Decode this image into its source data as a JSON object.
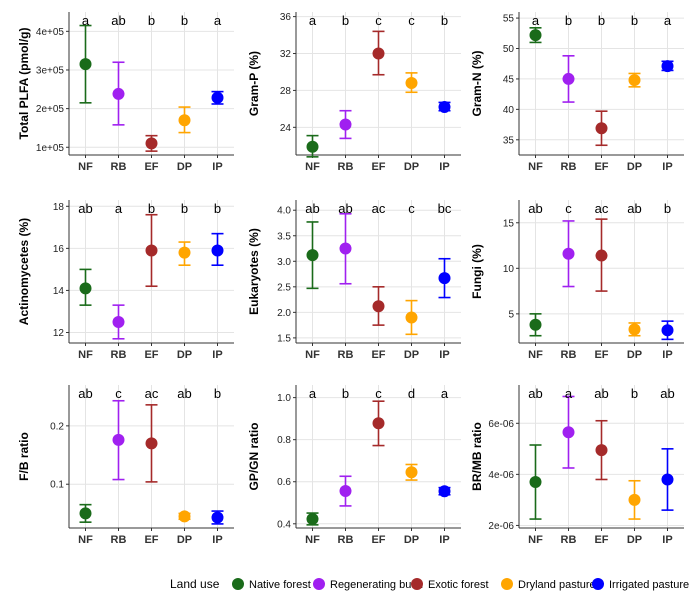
{
  "categories": [
    "NF",
    "RB",
    "EF",
    "DP",
    "IP"
  ],
  "colors": [
    "#1a6b1a",
    "#a020f0",
    "#a52a2a",
    "#ffa500",
    "#0000ff"
  ],
  "legend": {
    "title": "Land use",
    "entries": [
      "Native forest",
      "Regenerating bush",
      "Exotic forest",
      "Dryland pasture",
      "Irrigated pasture"
    ]
  },
  "chart_data": [
    {
      "type": "scatter",
      "ylabel": "Total PLFA (pmol/g)",
      "ylim": [
        80000,
        450000
      ],
      "ticks": [
        100000,
        200000,
        300000,
        400000
      ],
      "tick_labels": [
        "1e+05",
        "2e+05",
        "3e+05",
        "4e+05"
      ],
      "letters": [
        "a",
        "ab",
        "b",
        "b",
        "a"
      ],
      "values": [
        315000,
        238000,
        110000,
        170000,
        228000
      ],
      "lower": [
        215000,
        158000,
        90000,
        138000,
        212000
      ],
      "upper": [
        415000,
        320000,
        130000,
        204000,
        244000
      ]
    },
    {
      "type": "scatter",
      "ylabel": "Gram-P (%)",
      "ylim": [
        21,
        36.5
      ],
      "ticks": [
        24,
        28,
        32,
        36
      ],
      "tick_labels": [
        "24",
        "28",
        "32",
        "36"
      ],
      "letters": [
        "a",
        "b",
        "c",
        "c",
        "b"
      ],
      "values": [
        21.9,
        24.3,
        32.0,
        28.8,
        26.2
      ],
      "lower": [
        20.8,
        22.8,
        29.7,
        27.8,
        25.8
      ],
      "upper": [
        23.1,
        25.8,
        34.4,
        29.9,
        26.7
      ]
    },
    {
      "type": "scatter",
      "ylabel": "Gram-N (%)",
      "ylim": [
        32.5,
        56
      ],
      "ticks": [
        35,
        40,
        45,
        50,
        55
      ],
      "tick_labels": [
        "35",
        "40",
        "45",
        "50",
        "55"
      ],
      "letters": [
        "a",
        "b",
        "b",
        "b",
        "a"
      ],
      "values": [
        52.2,
        45.0,
        36.9,
        44.8,
        47.1
      ],
      "lower": [
        51.0,
        41.2,
        34.1,
        43.7,
        46.4
      ],
      "upper": [
        53.4,
        48.8,
        39.7,
        45.9,
        47.9
      ]
    },
    {
      "type": "scatter",
      "ylabel": "Actinomycetes (%)",
      "ylim": [
        11.5,
        18.3
      ],
      "ticks": [
        12,
        14,
        16,
        18
      ],
      "tick_labels": [
        "12",
        "14",
        "16",
        "18"
      ],
      "letters": [
        "ab",
        "a",
        "b",
        "b",
        "b"
      ],
      "values": [
        14.1,
        12.5,
        15.9,
        15.8,
        15.9
      ],
      "lower": [
        13.3,
        11.7,
        14.2,
        15.2,
        15.2
      ],
      "upper": [
        15.0,
        13.3,
        17.6,
        16.3,
        16.7
      ]
    },
    {
      "type": "scatter",
      "ylabel": "Eukaryotes (%)",
      "ylim": [
        1.4,
        4.2
      ],
      "ticks": [
        1.5,
        2.0,
        2.5,
        3.0,
        3.5,
        4.0
      ],
      "tick_labels": [
        "1.5",
        "2.0",
        "2.5",
        "3.0",
        "3.5",
        "4.0"
      ],
      "letters": [
        "ab",
        "ab",
        "ac",
        "c",
        "bc"
      ],
      "values": [
        3.12,
        3.25,
        2.12,
        1.9,
        2.67
      ],
      "lower": [
        2.47,
        2.56,
        1.75,
        1.57,
        2.29
      ],
      "upper": [
        3.77,
        3.93,
        2.5,
        2.23,
        3.05
      ]
    },
    {
      "type": "scatter",
      "ylabel": "Fungi (%)",
      "ylim": [
        1.8,
        17.5
      ],
      "ticks": [
        5,
        10,
        15
      ],
      "tick_labels": [
        "5",
        "10",
        "15"
      ],
      "letters": [
        "ab",
        "c",
        "ac",
        "ab",
        "b"
      ],
      "values": [
        3.8,
        11.6,
        11.4,
        3.3,
        3.2
      ],
      "lower": [
        2.6,
        8.0,
        7.5,
        2.6,
        2.2
      ],
      "upper": [
        5.0,
        15.2,
        15.4,
        4.0,
        4.2
      ]
    },
    {
      "type": "scatter",
      "ylabel": "F/B ratio",
      "ylim": [
        0.025,
        0.27
      ],
      "ticks": [
        0.1,
        0.2
      ],
      "tick_labels": [
        "0.1",
        "0.2"
      ],
      "letters": [
        "ab",
        "c",
        "ac",
        "ab",
        "b"
      ],
      "values": [
        0.05,
        0.176,
        0.17,
        0.045,
        0.043
      ],
      "lower": [
        0.035,
        0.108,
        0.104,
        0.04,
        0.032
      ],
      "upper": [
        0.065,
        0.243,
        0.236,
        0.05,
        0.054
      ]
    },
    {
      "type": "scatter",
      "ylabel": "GP/GN ratio",
      "ylim": [
        0.38,
        1.06
      ],
      "ticks": [
        0.4,
        0.6,
        0.8,
        1.0
      ],
      "tick_labels": [
        "0.4",
        "0.6",
        "0.8",
        "1.0"
      ],
      "letters": [
        "a",
        "b",
        "c",
        "d",
        "a"
      ],
      "values": [
        0.423,
        0.556,
        0.878,
        0.645,
        0.555
      ],
      "lower": [
        0.395,
        0.485,
        0.772,
        0.608,
        0.538
      ],
      "upper": [
        0.451,
        0.626,
        0.983,
        0.682,
        0.572
      ]
    },
    {
      "type": "scatter",
      "ylabel": "BR/MB ratio",
      "ylim": [
        1.9e-06,
        7.5e-06
      ],
      "ticks": [
        2e-06,
        4e-06,
        6e-06
      ],
      "tick_labels": [
        "2e-06",
        "4e-06",
        "6e-06"
      ],
      "letters": [
        "ab",
        "a",
        "ab",
        "b",
        "ab"
      ],
      "values": [
        3.7e-06,
        5.65e-06,
        4.95e-06,
        3e-06,
        3.8e-06
      ],
      "lower": [
        2.25e-06,
        4.25e-06,
        3.8e-06,
        2.25e-06,
        2.6e-06
      ],
      "upper": [
        5.15e-06,
        7.05e-06,
        6.1e-06,
        3.75e-06,
        5e-06
      ]
    }
  ]
}
